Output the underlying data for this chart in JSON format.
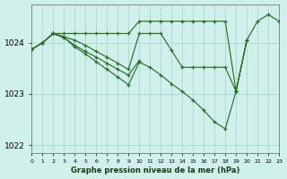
{
  "title": "Graphe pression niveau de la mer (hPa)",
  "background_color": "#d0f0eb",
  "grid_color": "#aaddd8",
  "line_color": "#2d6e2d",
  "xlim_min": 0,
  "xlim_max": 23,
  "ylim_min": 1021.85,
  "ylim_max": 1024.75,
  "yticks": [
    1022,
    1023,
    1024
  ],
  "xticks": [
    0,
    1,
    2,
    3,
    4,
    5,
    6,
    7,
    8,
    9,
    10,
    11,
    12,
    13,
    14,
    15,
    16,
    17,
    18,
    19,
    20,
    21,
    22,
    23
  ],
  "series": [
    {
      "x": [
        0,
        1,
        2,
        3,
        4,
        5,
        6,
        7,
        8,
        9,
        10,
        11,
        12,
        13,
        14,
        15,
        16,
        17,
        18,
        19,
        20,
        21,
        22,
        23
      ],
      "y": [
        1023.87,
        1024.0,
        1024.18,
        1024.18,
        1024.18,
        1024.18,
        1024.18,
        1024.18,
        1024.18,
        1024.18,
        1024.42,
        1024.42,
        1024.42,
        1024.42,
        1024.42,
        1024.42,
        1024.42,
        1024.42,
        1024.42,
        1023.05,
        1024.05,
        1024.42,
        1024.55,
        1024.42
      ]
    },
    {
      "x": [
        0,
        1,
        2,
        3,
        4,
        5,
        6,
        7,
        8,
        9,
        10,
        11,
        12,
        13,
        14,
        15,
        16,
        17,
        18,
        19,
        20
      ],
      "y": [
        1023.87,
        1024.0,
        1024.18,
        1024.12,
        1024.05,
        1023.95,
        1023.83,
        1023.72,
        1023.6,
        1023.48,
        1024.18,
        1024.18,
        1024.18,
        1023.85,
        1023.52,
        1023.52,
        1023.52,
        1023.52,
        1023.52,
        1023.05,
        1024.05
      ]
    },
    {
      "x": [
        0,
        1,
        2,
        3,
        4,
        5,
        6,
        7,
        8,
        9,
        10
      ],
      "y": [
        1023.87,
        1024.0,
        1024.18,
        1024.1,
        1023.95,
        1023.83,
        1023.72,
        1023.6,
        1023.48,
        1023.37,
        1023.65
      ]
    },
    {
      "x": [
        0,
        1,
        2,
        3,
        4,
        5,
        6,
        7,
        8,
        9,
        10,
        11,
        12,
        13,
        14,
        15,
        16,
        17,
        18,
        19,
        20
      ],
      "y": [
        1023.87,
        1024.0,
        1024.18,
        1024.1,
        1023.92,
        1023.78,
        1023.63,
        1023.48,
        1023.33,
        1023.18,
        1023.62,
        1023.52,
        1023.37,
        1023.2,
        1023.05,
        1022.88,
        1022.68,
        1022.45,
        1022.32,
        1023.05,
        1024.05
      ]
    }
  ]
}
